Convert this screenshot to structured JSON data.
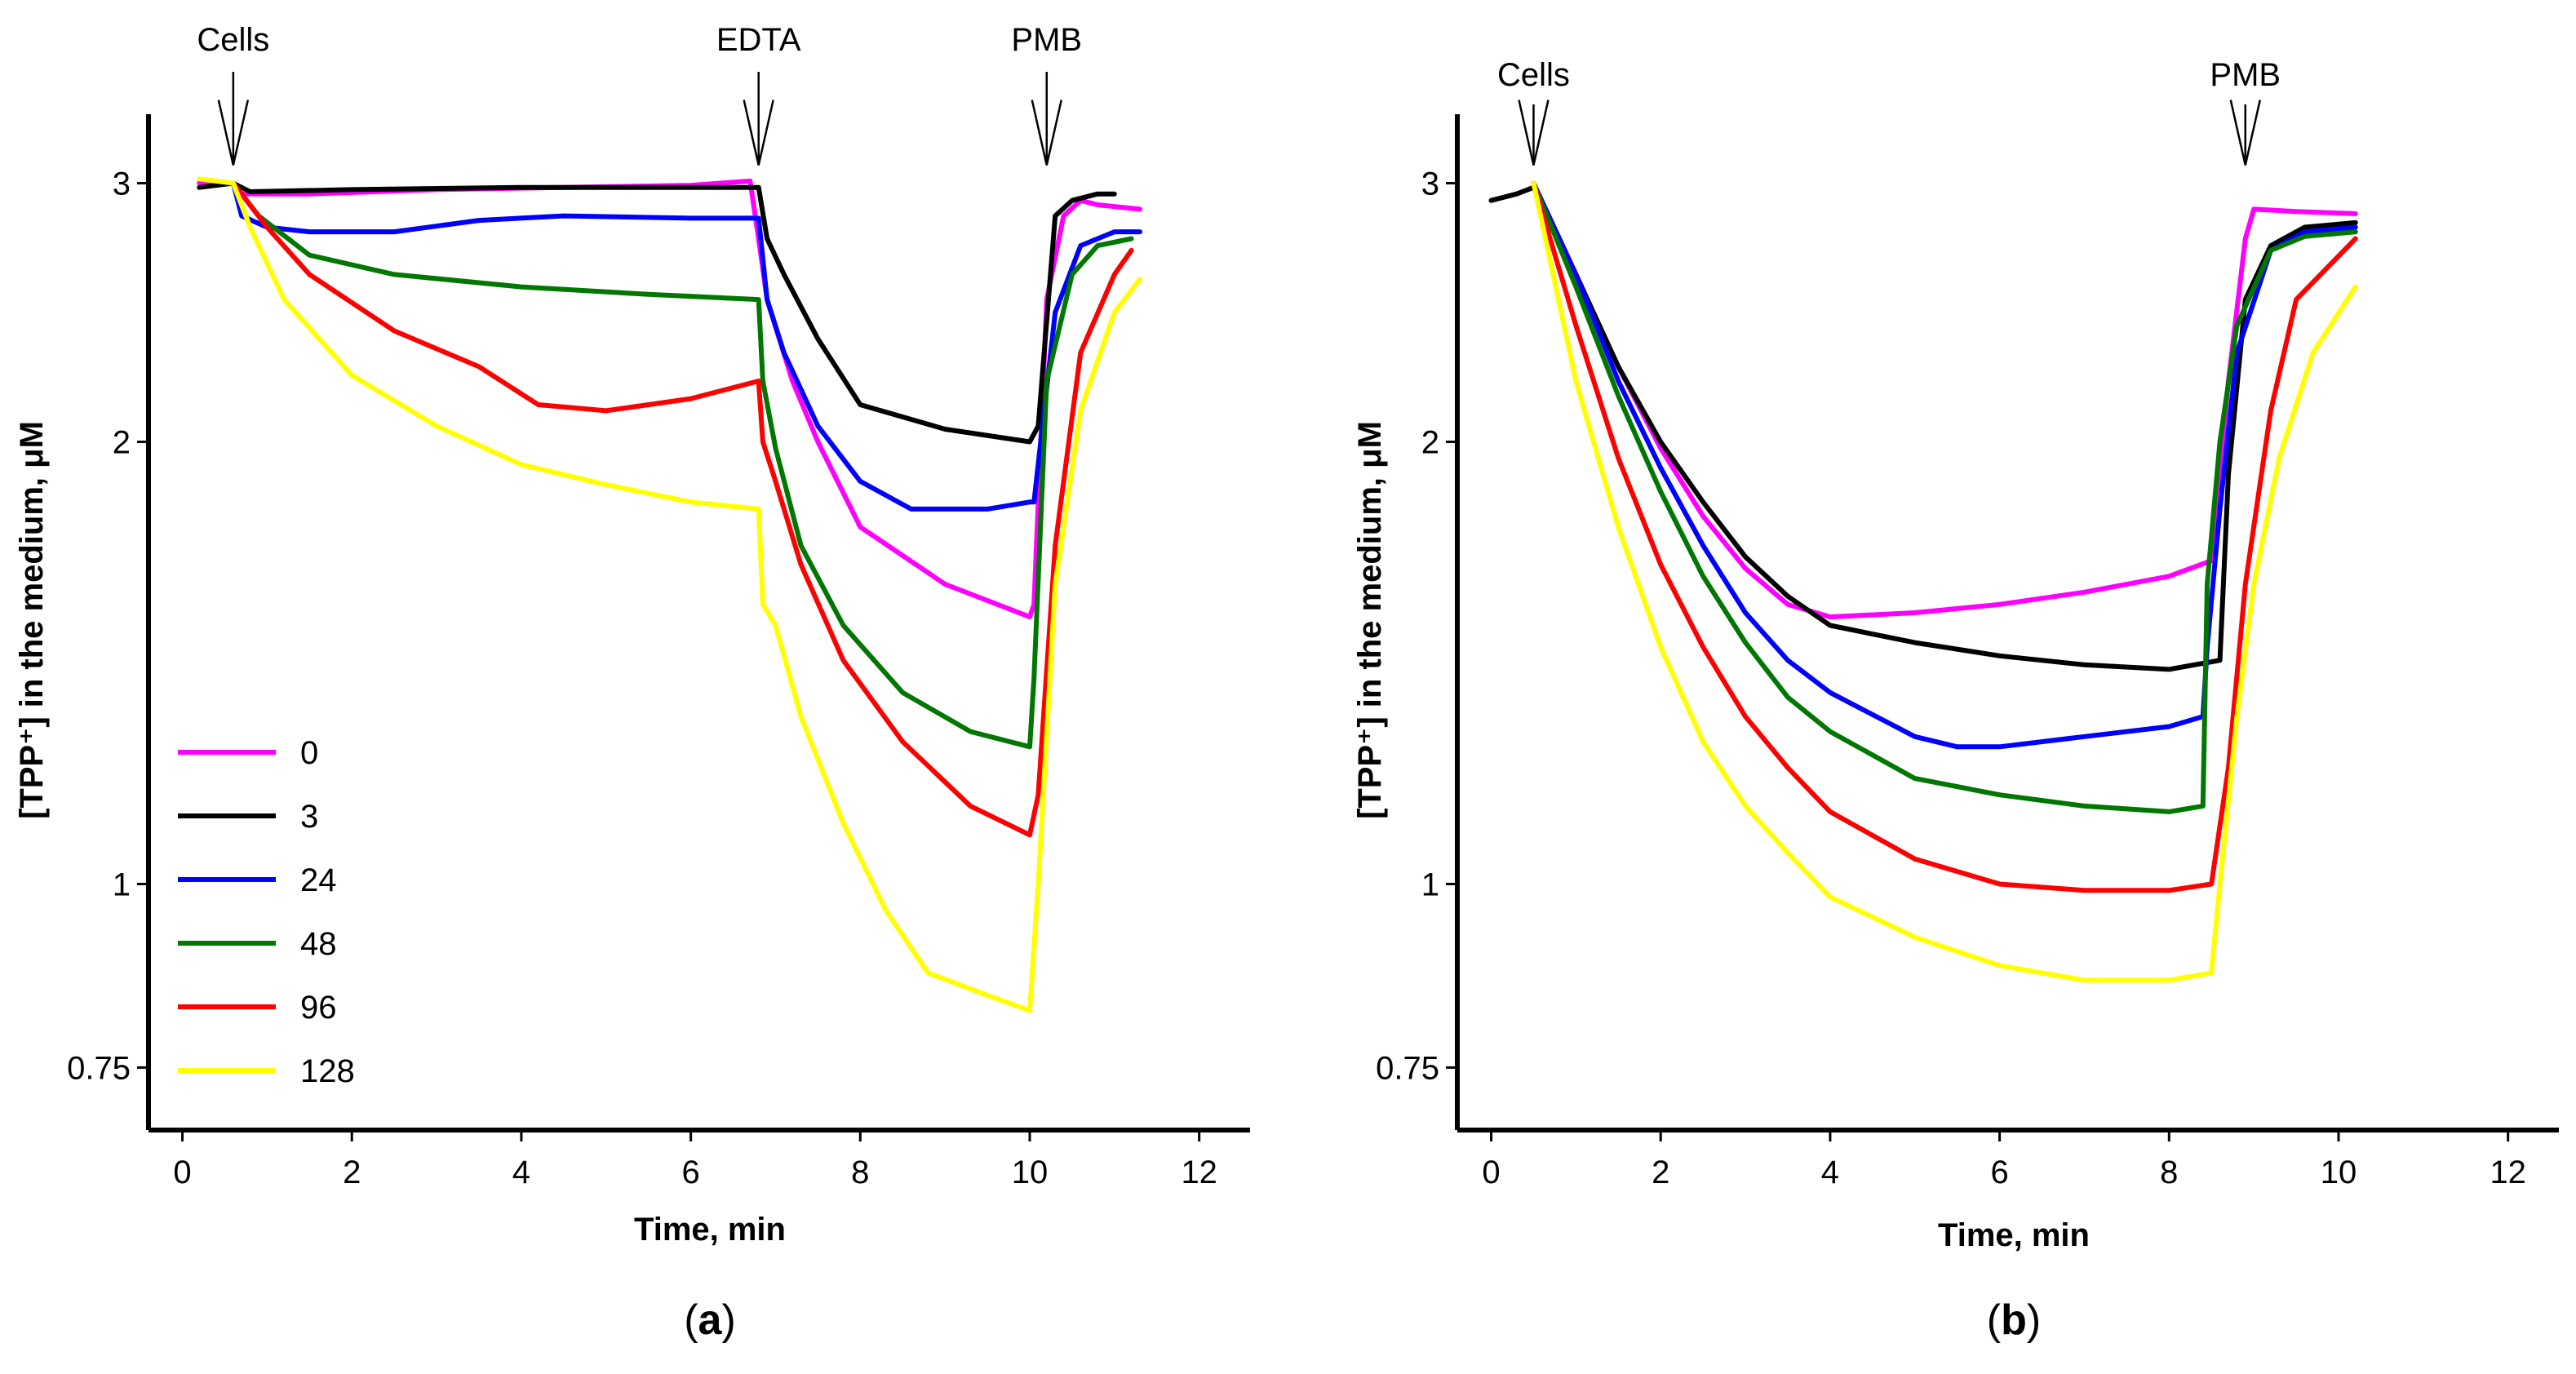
{
  "chart_data": [
    {
      "type": "line",
      "panel_label": "(a)",
      "panel_letter": "a",
      "xlabel": "Time, min",
      "ylabel": "[TPP⁺] in the medium, μM",
      "y_scale": "log",
      "xlim": [
        -0.4,
        12.6
      ],
      "ylim": [
        0.68,
        3.3
      ],
      "x_ticks": [
        0,
        2,
        4,
        6,
        8,
        10,
        12
      ],
      "x_tick_labels": [
        "0",
        "2",
        "4",
        "6",
        "8",
        "10",
        "12"
      ],
      "y_ticks": [
        0.75,
        1,
        2,
        3
      ],
      "y_tick_labels": [
        "0.75",
        "1",
        "2",
        "3"
      ],
      "annotations": [
        {
          "text": "Cells",
          "x": 0.6
        },
        {
          "text": "EDTA",
          "x": 6.8
        },
        {
          "text": "PMB",
          "x": 10.2
        }
      ],
      "legend": [
        "0",
        "3",
        "24",
        "48",
        "96",
        "128"
      ],
      "series": [
        {
          "name": "0",
          "color": "#ff00ff",
          "x": [
            0.2,
            0.6,
            0.7,
            1.5,
            3,
            4.5,
            6,
            6.7,
            6.8,
            6.9,
            7.2,
            7.5,
            8,
            9,
            10,
            10.05,
            10.2,
            10.4,
            10.6,
            10.8,
            11.3
          ],
          "y": [
            3.0,
            3.0,
            2.95,
            2.95,
            2.97,
            2.98,
            2.99,
            3.01,
            2.75,
            2.5,
            2.2,
            2.0,
            1.75,
            1.6,
            1.52,
            1.55,
            2.5,
            2.85,
            2.92,
            2.9,
            2.88
          ]
        },
        {
          "name": "3",
          "color": "#000000",
          "x": [
            0.2,
            0.6,
            0.8,
            2,
            4,
            6,
            6.8,
            6.9,
            7.1,
            7.5,
            8,
            9,
            10,
            10.1,
            10.3,
            10.5,
            10.8,
            11.0
          ],
          "y": [
            2.98,
            3.0,
            2.96,
            2.97,
            2.98,
            2.98,
            2.98,
            2.75,
            2.6,
            2.35,
            2.12,
            2.04,
            2.0,
            2.05,
            2.85,
            2.92,
            2.95,
            2.95
          ]
        },
        {
          "name": "24",
          "color": "#0000ff",
          "x": [
            0.6,
            0.7,
            1.0,
            1.5,
            2.5,
            3.5,
            4.5,
            6,
            6.8,
            6.9,
            7.1,
            7.5,
            8,
            8.6,
            9.5,
            10,
            10.05,
            10.3,
            10.6,
            11.0,
            11.3
          ],
          "y": [
            3.0,
            2.85,
            2.8,
            2.78,
            2.78,
            2.83,
            2.85,
            2.84,
            2.84,
            2.5,
            2.3,
            2.05,
            1.88,
            1.8,
            1.8,
            1.82,
            1.82,
            2.45,
            2.72,
            2.78,
            2.78
          ]
        },
        {
          "name": "48",
          "color": "#007700",
          "x": [
            0.6,
            0.9,
            1.5,
            2.5,
            4,
            5.5,
            6.8,
            6.85,
            7.0,
            7.3,
            7.8,
            8.5,
            9.3,
            10,
            10.05,
            10.2,
            10.5,
            10.8,
            11.2
          ],
          "y": [
            3.0,
            2.85,
            2.68,
            2.6,
            2.55,
            2.52,
            2.5,
            2.2,
            1.98,
            1.7,
            1.5,
            1.35,
            1.27,
            1.24,
            1.38,
            2.2,
            2.6,
            2.72,
            2.75
          ]
        },
        {
          "name": "96",
          "color": "#ff0000",
          "x": [
            0.6,
            1.0,
            1.5,
            2.5,
            3.5,
            4.2,
            5,
            6,
            6.8,
            6.85,
            7.0,
            7.3,
            7.8,
            8.5,
            9.3,
            10,
            10.1,
            10.3,
            10.6,
            11.0,
            11.2
          ],
          "y": [
            3.0,
            2.8,
            2.6,
            2.38,
            2.25,
            2.12,
            2.1,
            2.14,
            2.2,
            2.0,
            1.88,
            1.65,
            1.42,
            1.25,
            1.13,
            1.08,
            1.15,
            1.7,
            2.3,
            2.6,
            2.7
          ]
        },
        {
          "name": "128",
          "color": "#ffff00",
          "x": [
            0.2,
            0.6,
            0.8,
            1.2,
            2,
            3,
            4,
            5,
            6,
            6.8,
            6.85,
            7.0,
            7.3,
            7.8,
            8.3,
            8.8,
            9.5,
            10,
            10.1,
            10.3,
            10.6,
            11.0,
            11.3
          ],
          "y": [
            3.02,
            3.0,
            2.8,
            2.5,
            2.22,
            2.05,
            1.93,
            1.87,
            1.82,
            1.8,
            1.55,
            1.5,
            1.3,
            1.1,
            0.96,
            0.87,
            0.84,
            0.82,
            1.0,
            1.6,
            2.1,
            2.45,
            2.58
          ]
        }
      ]
    },
    {
      "type": "line",
      "panel_label": "(b)",
      "panel_letter": "b",
      "xlabel": "Time, min",
      "ylabel": "[TPP⁺] in the medium, μM",
      "y_scale": "log",
      "xlim": [
        -0.4,
        12.6
      ],
      "ylim": [
        0.68,
        3.3
      ],
      "x_ticks": [
        0,
        2,
        4,
        6,
        8,
        10,
        12
      ],
      "x_tick_labels": [
        "0",
        "2",
        "4",
        "6",
        "8",
        "10",
        "12"
      ],
      "y_ticks": [
        0.75,
        1,
        2,
        3
      ],
      "y_tick_labels": [
        "0.75",
        "1",
        "2",
        "3"
      ],
      "annotations": [
        {
          "text": "Cells",
          "x": 0.5
        },
        {
          "text": "PMB",
          "x": 8.9
        }
      ],
      "series": [
        {
          "name": "0",
          "color": "#ff00ff",
          "x": [
            0.5,
            1.0,
            1.5,
            2.0,
            2.5,
            3.0,
            3.5,
            4.0,
            5.0,
            6.0,
            7.0,
            8.0,
            8.5,
            8.7,
            8.9,
            9.0,
            9.5,
            10.2
          ],
          "y": [
            3.0,
            2.6,
            2.25,
            1.98,
            1.78,
            1.64,
            1.55,
            1.52,
            1.53,
            1.55,
            1.58,
            1.62,
            1.66,
            2.2,
            2.75,
            2.88,
            2.87,
            2.86
          ]
        },
        {
          "name": "3",
          "color": "#000000",
          "x": [
            0.0,
            0.3,
            0.5,
            1.0,
            1.5,
            2.0,
            2.5,
            3.0,
            3.5,
            4.0,
            5.0,
            6.0,
            7.0,
            8.0,
            8.6,
            8.7,
            8.9,
            9.2,
            9.6,
            10.2
          ],
          "y": [
            2.92,
            2.95,
            2.98,
            2.6,
            2.25,
            2.0,
            1.82,
            1.67,
            1.57,
            1.5,
            1.46,
            1.43,
            1.41,
            1.4,
            1.42,
            1.9,
            2.5,
            2.72,
            2.8,
            2.82
          ]
        },
        {
          "name": "24",
          "color": "#0000ff",
          "x": [
            0.5,
            1.0,
            1.5,
            2.0,
            2.5,
            3.0,
            3.5,
            4.0,
            5.0,
            5.5,
            6.0,
            7.0,
            8.0,
            8.4,
            8.45,
            8.6,
            8.8,
            9.2,
            9.6,
            10.2
          ],
          "y": [
            3.0,
            2.6,
            2.2,
            1.92,
            1.7,
            1.53,
            1.42,
            1.35,
            1.26,
            1.24,
            1.24,
            1.26,
            1.28,
            1.3,
            1.45,
            1.8,
            2.3,
            2.7,
            2.78,
            2.8
          ]
        },
        {
          "name": "48",
          "color": "#007700",
          "x": [
            0.5,
            1.0,
            1.5,
            2.0,
            2.5,
            3.0,
            3.5,
            4.0,
            5.0,
            6.0,
            7.0,
            8.0,
            8.4,
            8.45,
            8.6,
            8.8,
            9.2,
            9.6,
            10.2
          ],
          "y": [
            3.0,
            2.55,
            2.15,
            1.85,
            1.62,
            1.46,
            1.34,
            1.27,
            1.18,
            1.15,
            1.13,
            1.12,
            1.13,
            1.6,
            2.0,
            2.4,
            2.7,
            2.76,
            2.78
          ]
        },
        {
          "name": "96",
          "color": "#ff0000",
          "x": [
            0.5,
            1.0,
            1.5,
            2.0,
            2.5,
            3.0,
            3.5,
            4.0,
            5.0,
            6.0,
            7.0,
            8.0,
            8.5,
            8.7,
            8.9,
            9.2,
            9.5,
            10.2
          ],
          "y": [
            3.0,
            2.4,
            1.95,
            1.65,
            1.45,
            1.3,
            1.2,
            1.12,
            1.04,
            1.0,
            0.99,
            0.99,
            1.0,
            1.2,
            1.6,
            2.1,
            2.5,
            2.75
          ]
        },
        {
          "name": "128",
          "color": "#ffff00",
          "x": [
            0.5,
            1.0,
            1.5,
            2.0,
            2.5,
            3.0,
            3.5,
            4.0,
            5.0,
            6.0,
            7.0,
            8.0,
            8.5,
            8.6,
            8.8,
            9.0,
            9.3,
            9.7,
            10.2
          ],
          "y": [
            3.0,
            2.2,
            1.75,
            1.45,
            1.25,
            1.13,
            1.05,
            0.98,
            0.92,
            0.88,
            0.86,
            0.86,
            0.87,
            1.0,
            1.3,
            1.6,
            1.95,
            2.3,
            2.55
          ]
        }
      ]
    }
  ]
}
